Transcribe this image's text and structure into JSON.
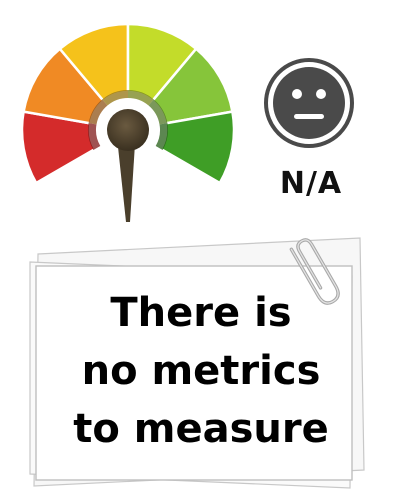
{
  "gauge": {
    "icon": "speedometer-gauge-icon",
    "segment_colors": [
      "#d42b2b",
      "#f08a24",
      "#f5c21b",
      "#c3dc2a",
      "#86c53a",
      "#3f9e26"
    ],
    "needle_color": "#4a3f2c"
  },
  "status": {
    "icon": "neutral-face-icon",
    "face_color": "#4a4a4a",
    "label": "N/A"
  },
  "note": {
    "lines": [
      "There is",
      "no metrics",
      "to measure"
    ],
    "paperclip_icon": "paperclip-icon"
  }
}
